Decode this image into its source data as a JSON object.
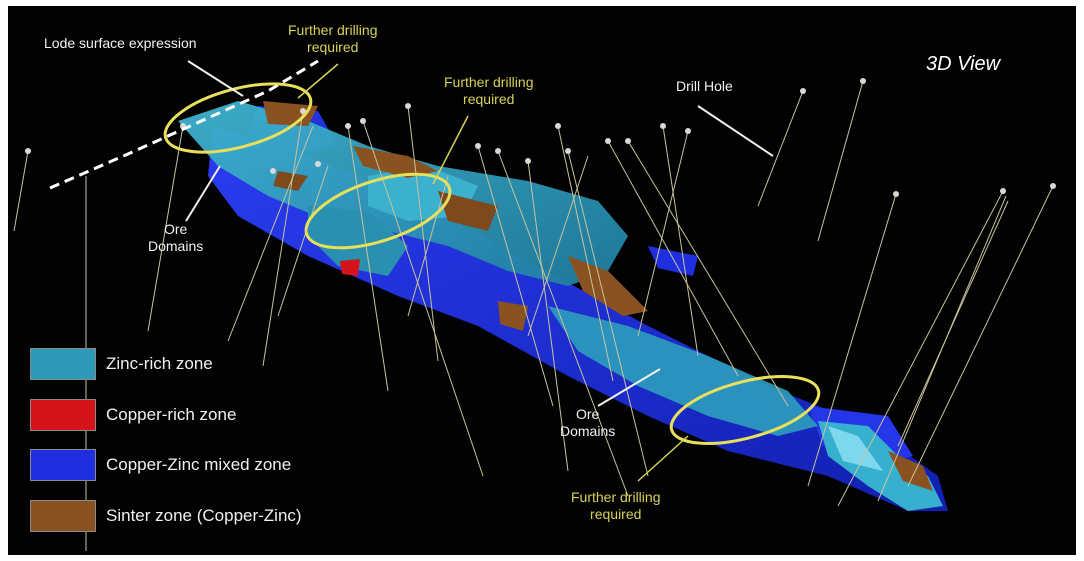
{
  "view_title": "3D View",
  "annotations": {
    "lode_surface": "Lode surface expression",
    "further_drilling_top": [
      "Further drilling",
      "required"
    ],
    "further_drilling_mid": [
      "Further drilling",
      "required"
    ],
    "further_drilling_bottom": [
      "Further drilling",
      "required"
    ],
    "drill_hole": "Drill Hole",
    "ore_domains_left": [
      "Ore",
      "Domains"
    ],
    "ore_domains_right": [
      "Ore",
      "Domains"
    ]
  },
  "legend": [
    {
      "label": "Zinc-rich zone",
      "color": "#2f9ab8"
    },
    {
      "label": "Copper-rich zone",
      "color": "#d4141a"
    },
    {
      "label": "Copper-Zinc mixed zone",
      "color": "#1f2fe0"
    },
    {
      "label": "Sinter zone (Copper-Zinc)",
      "color": "#8a5220"
    }
  ],
  "colors": {
    "background": "#020202",
    "annotation_yellow": "#d8d25a",
    "ellipse": "#e8e05a",
    "drill_hole_line": "#c8c39a"
  }
}
